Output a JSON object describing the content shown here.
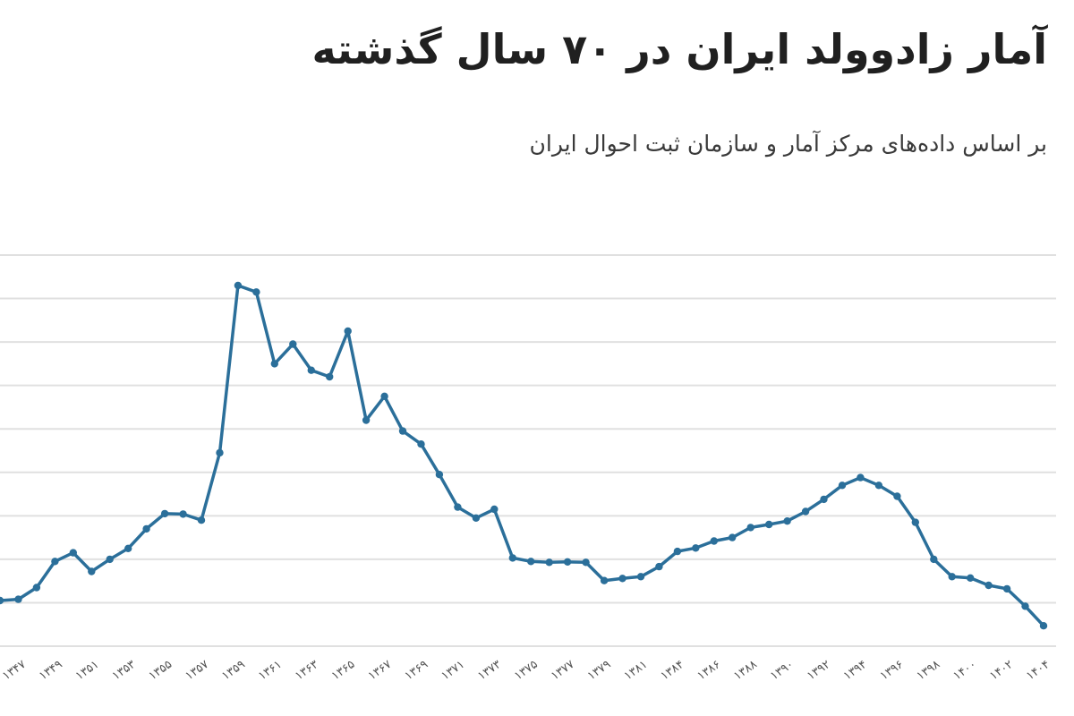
{
  "chart_data": {
    "type": "line",
    "title": "آمار زادوولد ایران در ۷۰ سال گذشته",
    "subtitle": "بر اساس داده‌های مرکز آمار و سازمان ثبت احوال ایران",
    "xlabel": "",
    "ylabel": "",
    "grid": true,
    "y_gridlines": [
      0,
      1,
      2,
      3,
      4,
      5,
      6,
      7,
      8,
      9
    ],
    "ylim": [
      0,
      9
    ],
    "x_tick_labels": [
      "۱۳۴۷",
      "۱۳۴۹",
      "۱۳۵۱",
      "۱۳۵۳",
      "۱۳۵۵",
      "۱۳۵۷",
      "۱۳۵۹",
      "۱۳۶۱",
      "۱۳۶۳",
      "۱۳۶۵",
      "۱۳۶۷",
      "۱۳۶۹",
      "۱۳۷۱",
      "۱۳۷۳",
      "۱۳۷۵",
      "۱۳۷۷",
      "۱۳۷۹",
      "۱۳۸۱",
      "۱۳۸۴",
      "۱۳۸۶",
      "۱۳۸۸",
      "۱۳۹۰",
      "۱۳۹۲",
      "۱۳۹۴",
      "۱۳۹۶",
      "۱۳۹۸",
      "۱۴۰۰",
      "۱۴۰۲",
      "۱۴۰۴"
    ],
    "color": "#2b6f9a",
    "series": [
      {
        "values": [
          1.05,
          1.08,
          1.35,
          1.95,
          2.15,
          1.72,
          2.0,
          2.25,
          2.7,
          3.05,
          3.04,
          2.9,
          4.45,
          8.3,
          8.15,
          6.5,
          6.95,
          6.35,
          6.2,
          7.25,
          5.2,
          5.75,
          4.95,
          4.65,
          3.95,
          3.2,
          2.95,
          3.15,
          2.03,
          1.95,
          1.93,
          1.94,
          1.93,
          1.51,
          1.56,
          1.6,
          1.83,
          2.18,
          2.26,
          2.42,
          2.5,
          2.73,
          2.8,
          2.88,
          3.1,
          3.38,
          3.7,
          3.88,
          3.7,
          3.45,
          2.85,
          2.0,
          1.6,
          1.57,
          1.4,
          1.32,
          0.92,
          0.47
        ]
      }
    ]
  }
}
